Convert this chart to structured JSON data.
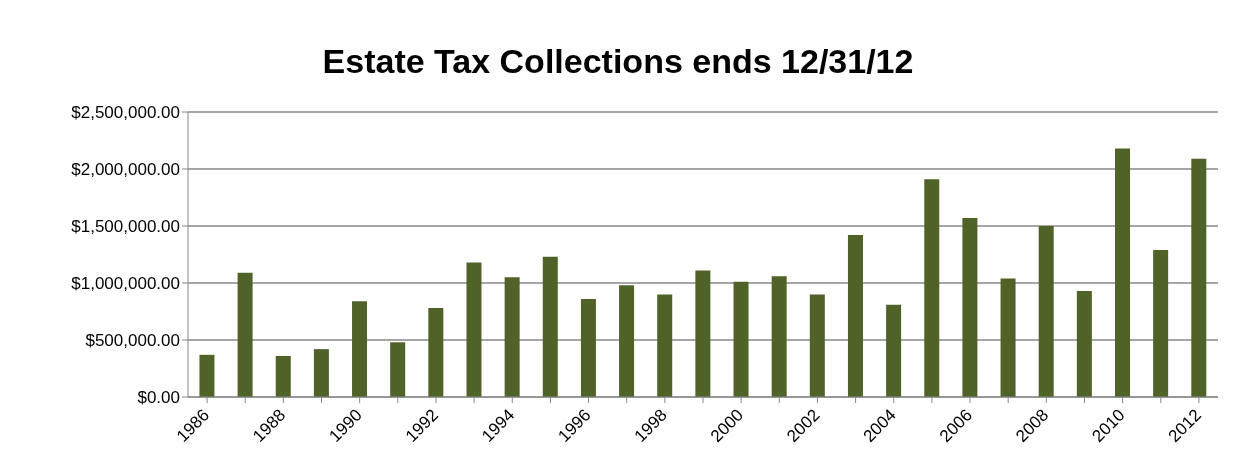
{
  "chart_data": {
    "type": "bar",
    "title": "Estate Tax Collections ends 12/31/12",
    "categories": [
      "1986",
      null,
      "1988",
      null,
      "1990",
      null,
      "1992",
      null,
      "1994",
      null,
      "1996",
      null,
      "1998",
      null,
      "2000",
      null,
      "2002",
      null,
      "2004",
      null,
      "2006",
      null,
      "2008",
      null,
      "2010",
      null,
      "2012"
    ],
    "values": [
      370000,
      1090000,
      360000,
      420000,
      840000,
      480000,
      780000,
      1180000,
      1050000,
      1230000,
      860000,
      980000,
      900000,
      1110000,
      1010000,
      1060000,
      900000,
      1420000,
      810000,
      1910000,
      1570000,
      1040000,
      1500000,
      930000,
      2180000,
      1290000,
      2090000
    ],
    "color": "#4f6228",
    "ylim": [
      0,
      2500000
    ],
    "yticks": [
      {
        "value": 0,
        "label": "$0.00"
      },
      {
        "value": 500000,
        "label": "$500,000.00"
      },
      {
        "value": 1000000,
        "label": "$1,000,000.00"
      },
      {
        "value": 1500000,
        "label": "$1,500,000.00"
      },
      {
        "value": 2000000,
        "label": "$2,000,000.00"
      },
      {
        "value": 2500000,
        "label": "$2,500,000.00"
      }
    ],
    "grid": "y"
  }
}
